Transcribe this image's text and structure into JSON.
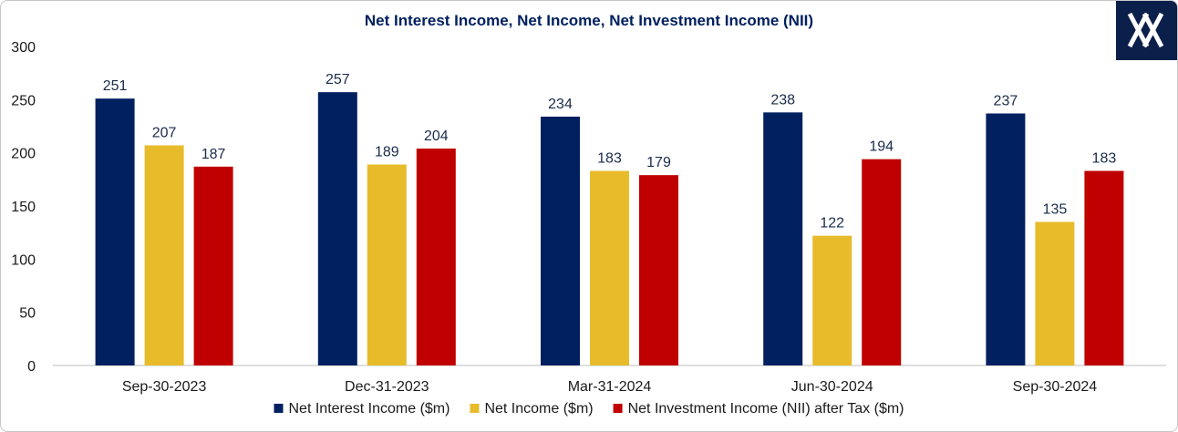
{
  "chart_data": {
    "type": "bar",
    "title": "Net Interest Income, Net Income, Net Investment Income (NII)",
    "categories": [
      "Sep-30-2023",
      "Dec-31-2023",
      "Mar-31-2024",
      "Jun-30-2024",
      "Sep-30-2024"
    ],
    "series": [
      {
        "name": "Net Interest Income ($m)",
        "color": "#002060",
        "values": [
          251,
          257,
          234,
          238,
          237
        ]
      },
      {
        "name": "Net Income ($m)",
        "color": "#E8BB2B",
        "values": [
          207,
          189,
          183,
          122,
          135
        ]
      },
      {
        "name": "Net Investment Income (NII)  after Tax  ($m)",
        "color": "#C00000",
        "values": [
          187,
          204,
          179,
          194,
          183
        ]
      }
    ],
    "ylim": [
      0,
      300
    ],
    "yticks": [
      0,
      50,
      100,
      150,
      200,
      250,
      300
    ],
    "grid": false,
    "legend_position": "bottom",
    "data_labels": true
  },
  "logo": {
    "icon": "x-logo-icon",
    "background": "#0b1f4b",
    "accent": "#ffffff"
  }
}
